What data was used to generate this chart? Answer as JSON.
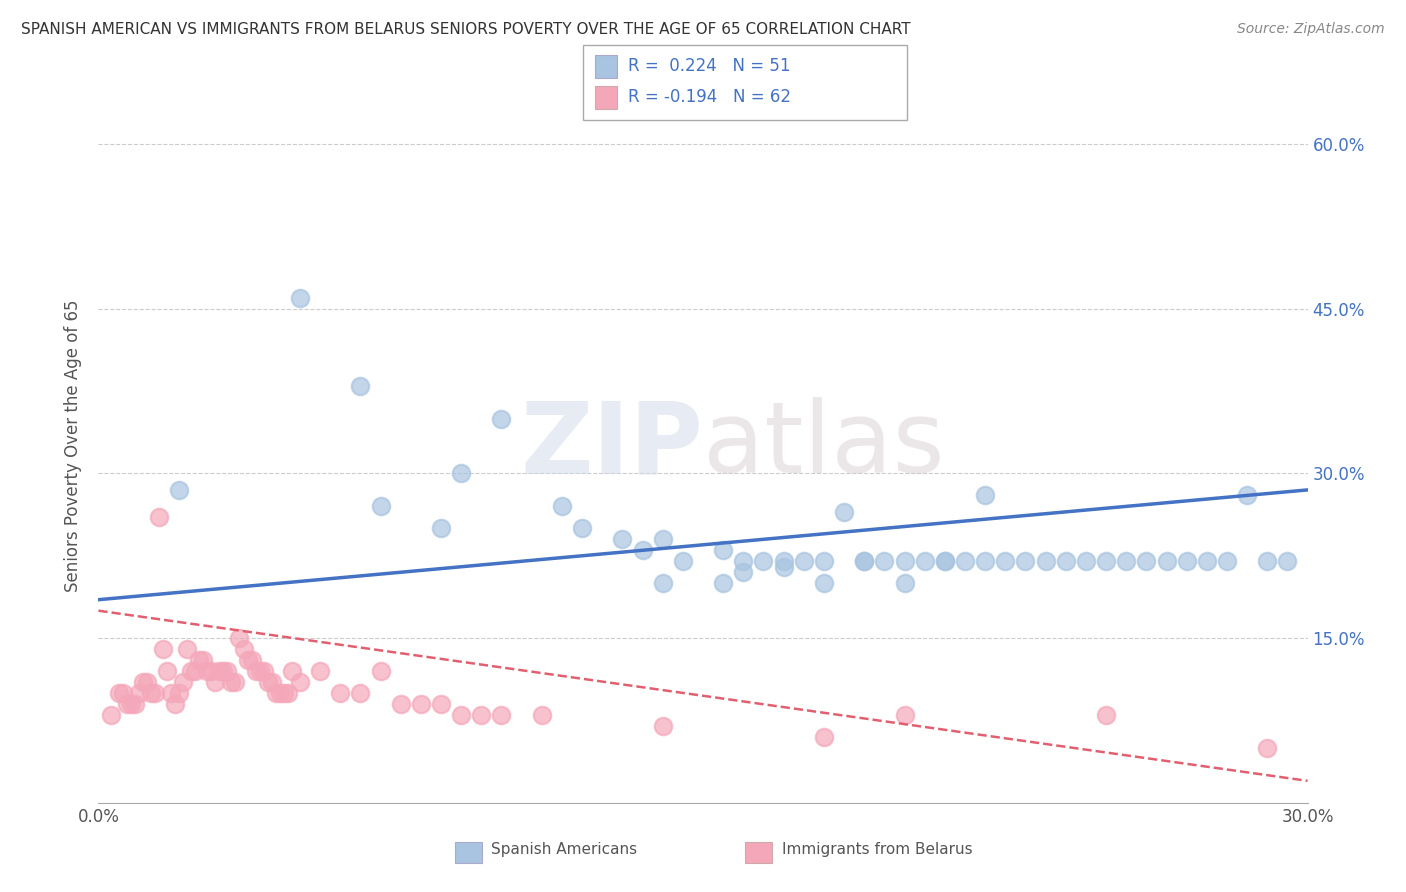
{
  "title": "SPANISH AMERICAN VS IMMIGRANTS FROM BELARUS SENIORS POVERTY OVER THE AGE OF 65 CORRELATION CHART",
  "source": "Source: ZipAtlas.com",
  "ylabel": "Seniors Poverty Over the Age of 65",
  "xlim": [
    0.0,
    0.3
  ],
  "ylim": [
    0.0,
    0.65
  ],
  "xticks": [
    0.0,
    0.05,
    0.1,
    0.15,
    0.2,
    0.25,
    0.3
  ],
  "xtick_labels": [
    "0.0%",
    "",
    "",
    "",
    "",
    "",
    "30.0%"
  ],
  "yticks": [
    0.0,
    0.15,
    0.3,
    0.45,
    0.6
  ],
  "ytick_labels_right": [
    "",
    "15.0%",
    "30.0%",
    "45.0%",
    "60.0%"
  ],
  "color_blue": "#a8c4e0",
  "color_pink": "#f4a7b9",
  "line_blue": "#4472c4",
  "line_pink": "#e06070",
  "watermark_zip": "ZIP",
  "watermark_atlas": "atlas",
  "blue_scatter_x": [
    0.02,
    0.05,
    0.065,
    0.07,
    0.085,
    0.09,
    0.1,
    0.115,
    0.12,
    0.13,
    0.135,
    0.14,
    0.145,
    0.155,
    0.16,
    0.165,
    0.17,
    0.175,
    0.18,
    0.185,
    0.19,
    0.195,
    0.2,
    0.205,
    0.21,
    0.215,
    0.22,
    0.225,
    0.23,
    0.235,
    0.24,
    0.245,
    0.25,
    0.255,
    0.26,
    0.265,
    0.27,
    0.275,
    0.28,
    0.285,
    0.29,
    0.295,
    0.155,
    0.18,
    0.14,
    0.16,
    0.2,
    0.19,
    0.21,
    0.17,
    0.22
  ],
  "blue_scatter_y": [
    0.285,
    0.46,
    0.38,
    0.27,
    0.25,
    0.3,
    0.35,
    0.27,
    0.25,
    0.24,
    0.23,
    0.24,
    0.22,
    0.23,
    0.22,
    0.22,
    0.22,
    0.22,
    0.22,
    0.265,
    0.22,
    0.22,
    0.22,
    0.22,
    0.22,
    0.22,
    0.22,
    0.22,
    0.22,
    0.22,
    0.22,
    0.22,
    0.22,
    0.22,
    0.22,
    0.22,
    0.22,
    0.22,
    0.22,
    0.28,
    0.22,
    0.22,
    0.2,
    0.2,
    0.2,
    0.21,
    0.2,
    0.22,
    0.22,
    0.215,
    0.28
  ],
  "pink_scatter_x": [
    0.003,
    0.005,
    0.006,
    0.007,
    0.008,
    0.009,
    0.01,
    0.011,
    0.012,
    0.013,
    0.014,
    0.015,
    0.016,
    0.017,
    0.018,
    0.019,
    0.02,
    0.021,
    0.022,
    0.023,
    0.024,
    0.025,
    0.026,
    0.027,
    0.028,
    0.029,
    0.03,
    0.031,
    0.032,
    0.033,
    0.034,
    0.035,
    0.036,
    0.037,
    0.038,
    0.039,
    0.04,
    0.041,
    0.042,
    0.043,
    0.044,
    0.045,
    0.046,
    0.047,
    0.048,
    0.05,
    0.055,
    0.06,
    0.065,
    0.07,
    0.075,
    0.08,
    0.085,
    0.09,
    0.095,
    0.1,
    0.11,
    0.14,
    0.18,
    0.2,
    0.25,
    0.29
  ],
  "pink_scatter_y": [
    0.08,
    0.1,
    0.1,
    0.09,
    0.09,
    0.09,
    0.1,
    0.11,
    0.11,
    0.1,
    0.1,
    0.26,
    0.14,
    0.12,
    0.1,
    0.09,
    0.1,
    0.11,
    0.14,
    0.12,
    0.12,
    0.13,
    0.13,
    0.12,
    0.12,
    0.11,
    0.12,
    0.12,
    0.12,
    0.11,
    0.11,
    0.15,
    0.14,
    0.13,
    0.13,
    0.12,
    0.12,
    0.12,
    0.11,
    0.11,
    0.1,
    0.1,
    0.1,
    0.1,
    0.12,
    0.11,
    0.12,
    0.1,
    0.1,
    0.12,
    0.09,
    0.09,
    0.09,
    0.08,
    0.08,
    0.08,
    0.08,
    0.07,
    0.06,
    0.08,
    0.08,
    0.05
  ],
  "blue_trend_x": [
    0.0,
    0.3
  ],
  "blue_trend_y": [
    0.185,
    0.285
  ],
  "pink_trend_x": [
    0.0,
    0.3
  ],
  "pink_trend_y": [
    0.175,
    0.02
  ],
  "grid_color": "#cccccc",
  "background_color": "#ffffff",
  "title_color": "#333333",
  "legend_r_color": "#4472c4"
}
